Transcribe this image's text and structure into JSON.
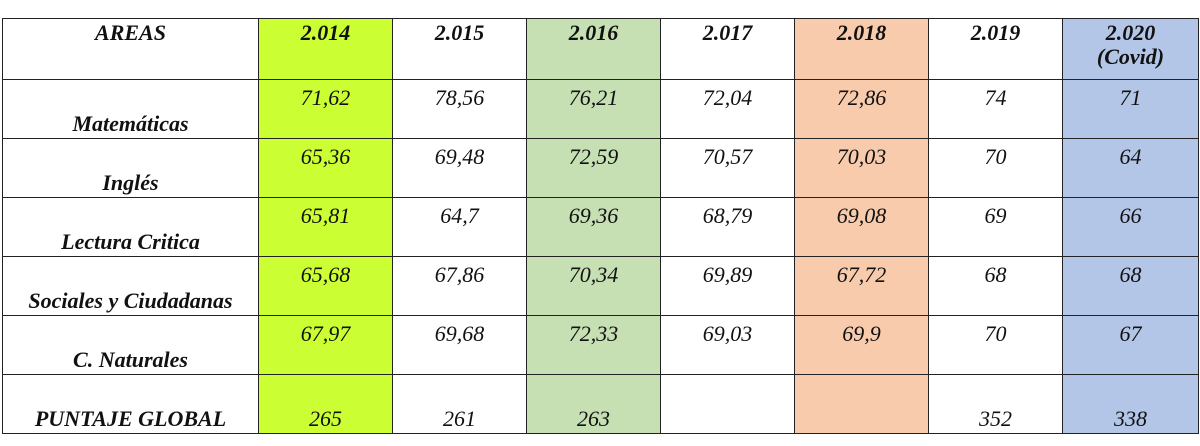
{
  "table": {
    "header": {
      "area": "AREAS",
      "years": [
        "2.014",
        "2.015",
        "2.016",
        "2.017",
        "2.018",
        "2.019",
        "2.020"
      ],
      "year_2020_note": "(Covid)"
    },
    "column_colors": {
      "2014": "#ccff33",
      "2016": "#c6e0b4",
      "2018": "#f8cbad",
      "2020": "#b4c6e7"
    },
    "rows": [
      {
        "area": "Matemáticas",
        "values": [
          "71,62",
          "78,56",
          "76,21",
          "72,04",
          "72,86",
          "74",
          "71"
        ]
      },
      {
        "area": "Inglés",
        "values": [
          "65,36",
          "69,48",
          "72,59",
          "70,57",
          "70,03",
          "70",
          "64"
        ]
      },
      {
        "area": "Lectura Critica",
        "values": [
          "65,81",
          "64,7",
          "69,36",
          "68,79",
          "69,08",
          "69",
          "66"
        ]
      },
      {
        "area": "Sociales y Ciudadanas",
        "values": [
          "65,68",
          "67,86",
          "70,34",
          "69,89",
          "67,72",
          "68",
          "68"
        ]
      },
      {
        "area": "C. Naturales",
        "values": [
          "67,97",
          "69,68",
          "72,33",
          "69,03",
          "69,9",
          "70",
          "67"
        ]
      },
      {
        "area": "PUNTAJE GLOBAL",
        "values": [
          "265",
          "261",
          "263",
          "",
          "",
          "352",
          "338"
        ]
      }
    ]
  }
}
